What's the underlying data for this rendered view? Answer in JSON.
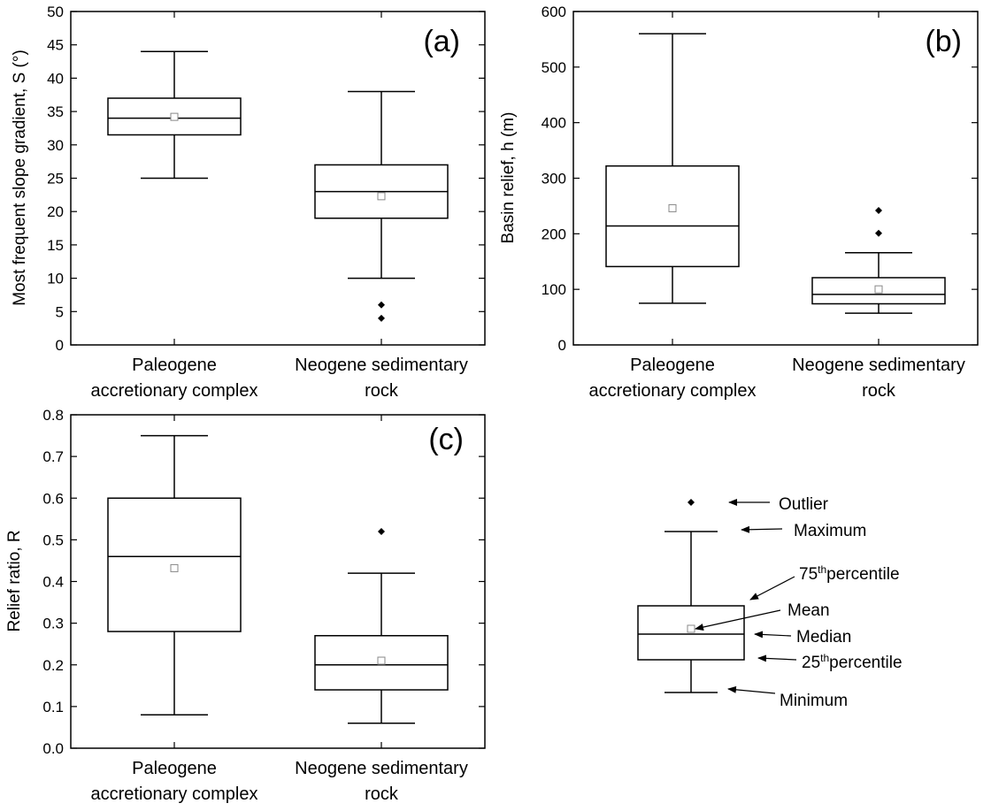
{
  "chart_data": [
    {
      "type": "box",
      "panel_label": "(a)",
      "ylabel": "Most frequent slope gradient, S (°)",
      "ylim": [
        0,
        50
      ],
      "ytick_step": 5,
      "ytick_labels": [
        "0",
        "5",
        "10",
        "15",
        "20",
        "25",
        "30",
        "35",
        "40",
        "45",
        "50"
      ],
      "categories": [
        [
          "Paleogene",
          "accretionary complex"
        ],
        [
          "Neogene sedimentary",
          "rock"
        ]
      ],
      "boxes": [
        {
          "min": 25,
          "q1": 31.5,
          "median": 34,
          "q3": 37,
          "max": 44,
          "mean": 34.2,
          "outliers": []
        },
        {
          "min": 10,
          "q1": 19,
          "median": 23,
          "q3": 27,
          "max": 38,
          "mean": 22.3,
          "outliers": [
            6,
            4
          ]
        }
      ]
    },
    {
      "type": "box",
      "panel_label": "(b)",
      "ylabel": "Basin relief, h (m)",
      "ylim": [
        0,
        600
      ],
      "ytick_step": 100,
      "ytick_labels": [
        "0",
        "100",
        "200",
        "300",
        "400",
        "500",
        "600"
      ],
      "categories": [
        [
          "Paleogene",
          "accretionary complex"
        ],
        [
          "Neogene sedimentary",
          "rock"
        ]
      ],
      "boxes": [
        {
          "min": 75,
          "q1": 141,
          "median": 214,
          "q3": 322,
          "max": 560,
          "mean": 246,
          "outliers": []
        },
        {
          "min": 57,
          "q1": 74,
          "median": 91,
          "q3": 121,
          "max": 166,
          "mean": 100,
          "outliers": [
            201,
            242
          ]
        }
      ]
    },
    {
      "type": "box",
      "panel_label": "(c)",
      "ylabel": "Relief ratio, R",
      "ylim": [
        0,
        0.8
      ],
      "ytick_step": 0.1,
      "ytick_labels": [
        "0.0",
        "0.1",
        "0.2",
        "0.3",
        "0.4",
        "0.5",
        "0.6",
        "0.7",
        "0.8"
      ],
      "categories": [
        [
          "Paleogene",
          "accretionary complex"
        ],
        [
          "Neogene sedimentary",
          "rock"
        ]
      ],
      "boxes": [
        {
          "min": 0.08,
          "q1": 0.28,
          "median": 0.46,
          "q3": 0.6,
          "max": 0.75,
          "mean": 0.432,
          "outliers": []
        },
        {
          "min": 0.06,
          "q1": 0.14,
          "median": 0.2,
          "q3": 0.27,
          "max": 0.42,
          "mean": 0.21,
          "outliers": [
            0.52
          ]
        }
      ]
    }
  ],
  "legend": {
    "outlier": "Outlier",
    "maximum": "Maximum",
    "p75_num": "75",
    "p75_sup": "th",
    "p75_word": "percentile",
    "mean": "Mean",
    "median": "Median",
    "p25_num": "25",
    "p25_sup": "th",
    "p25_word": "percentile",
    "minimum": "Minimum"
  }
}
